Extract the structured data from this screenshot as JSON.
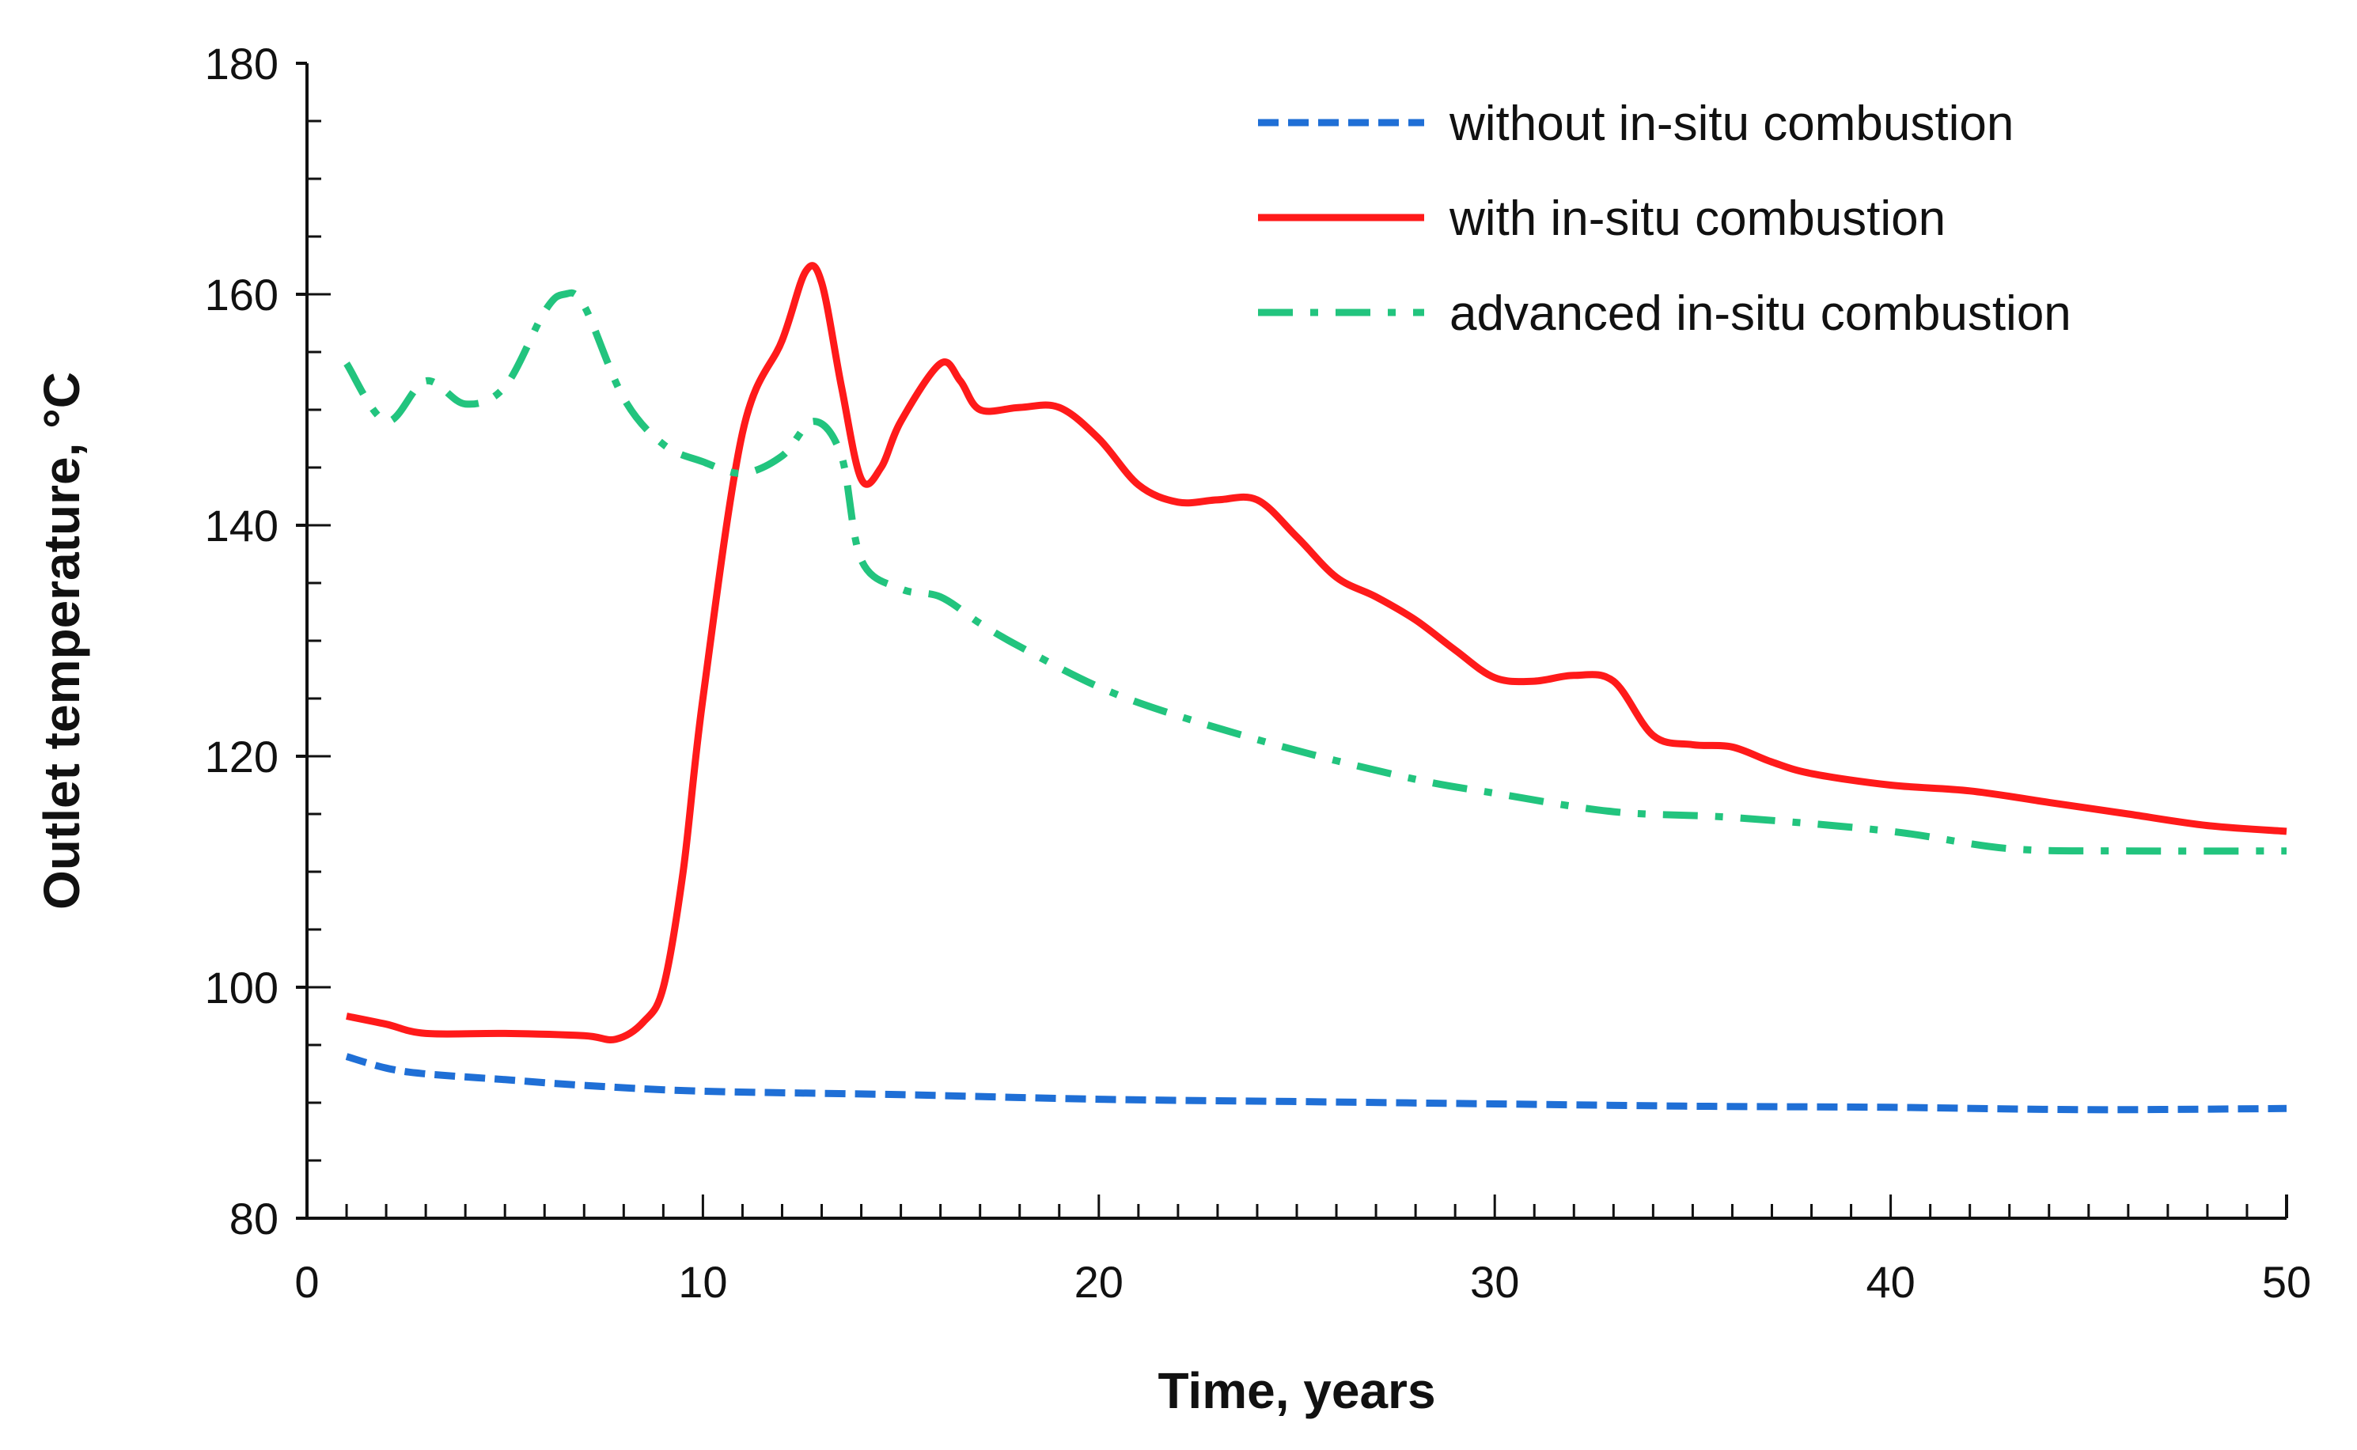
{
  "chart_data": {
    "type": "line",
    "title": "",
    "xlabel": "Time, years",
    "ylabel": "Outlet temperature, °C",
    "xlim": [
      0,
      50
    ],
    "ylim": [
      80,
      180
    ],
    "x_ticks": [
      0,
      10,
      20,
      30,
      40,
      50
    ],
    "y_ticks": [
      80,
      100,
      120,
      140,
      160,
      180
    ],
    "x_minor_step": 1,
    "y_minor_step": 5,
    "grid": false,
    "legend_position": "top-right",
    "series": [
      {
        "name": "without in-situ combustion",
        "color": "#1f6fd6",
        "style": "dashed",
        "x": [
          1,
          2,
          3,
          5,
          7,
          10,
          15,
          20,
          25,
          30,
          35,
          40,
          45,
          50
        ],
        "y": [
          94,
          93,
          92.5,
          92,
          91.5,
          91,
          90.7,
          90.3,
          90.1,
          89.9,
          89.7,
          89.6,
          89.4,
          89.5
        ]
      },
      {
        "name": "with in-situ combustion",
        "color": "#ff1a1a",
        "style": "solid",
        "x": [
          1,
          2,
          3,
          5,
          7,
          7.8,
          8.5,
          9,
          9.5,
          10,
          11,
          12,
          12.6,
          13,
          13.5,
          14,
          14.5,
          15,
          16,
          16.5,
          17,
          18,
          19,
          20,
          21,
          22,
          23,
          24,
          25,
          26,
          27,
          28,
          29,
          30,
          31,
          32,
          33,
          34,
          35,
          36,
          37,
          38,
          40,
          42,
          44,
          46,
          48,
          50
        ],
        "y": [
          97.5,
          96.8,
          96,
          96,
          95.8,
          95.5,
          97,
          100,
          110,
          125,
          148,
          156,
          162,
          161,
          152,
          144,
          145,
          149,
          154,
          152.5,
          150,
          150.2,
          150.2,
          147.5,
          143.5,
          142,
          142.2,
          142.2,
          139,
          135.5,
          133.8,
          131.8,
          129.2,
          126.8,
          126.5,
          127,
          126.5,
          121.8,
          121,
          120.8,
          119.5,
          118.5,
          117.5,
          117,
          116,
          115,
          114,
          113.5
        ]
      },
      {
        "name": "advanced in-situ combustion",
        "color": "#22c47e",
        "style": "dash-dot",
        "x": [
          1,
          2,
          3,
          4,
          5,
          6,
          6.5,
          7,
          8,
          9,
          10,
          11,
          12,
          12.8,
          13.5,
          14,
          15,
          16,
          17,
          18,
          20,
          22,
          25,
          28,
          30,
          33,
          36,
          40,
          43,
          46,
          50
        ],
        "y": [
          154,
          149,
          152.5,
          150.5,
          152,
          158.5,
          160,
          159,
          151,
          147,
          145.5,
          144.5,
          146,
          149,
          146,
          137,
          134.5,
          133.8,
          131.5,
          129.5,
          126,
          123.5,
          120.5,
          118,
          116.8,
          115.2,
          114.7,
          113.5,
          112,
          111.8,
          111.8
        ]
      }
    ]
  }
}
